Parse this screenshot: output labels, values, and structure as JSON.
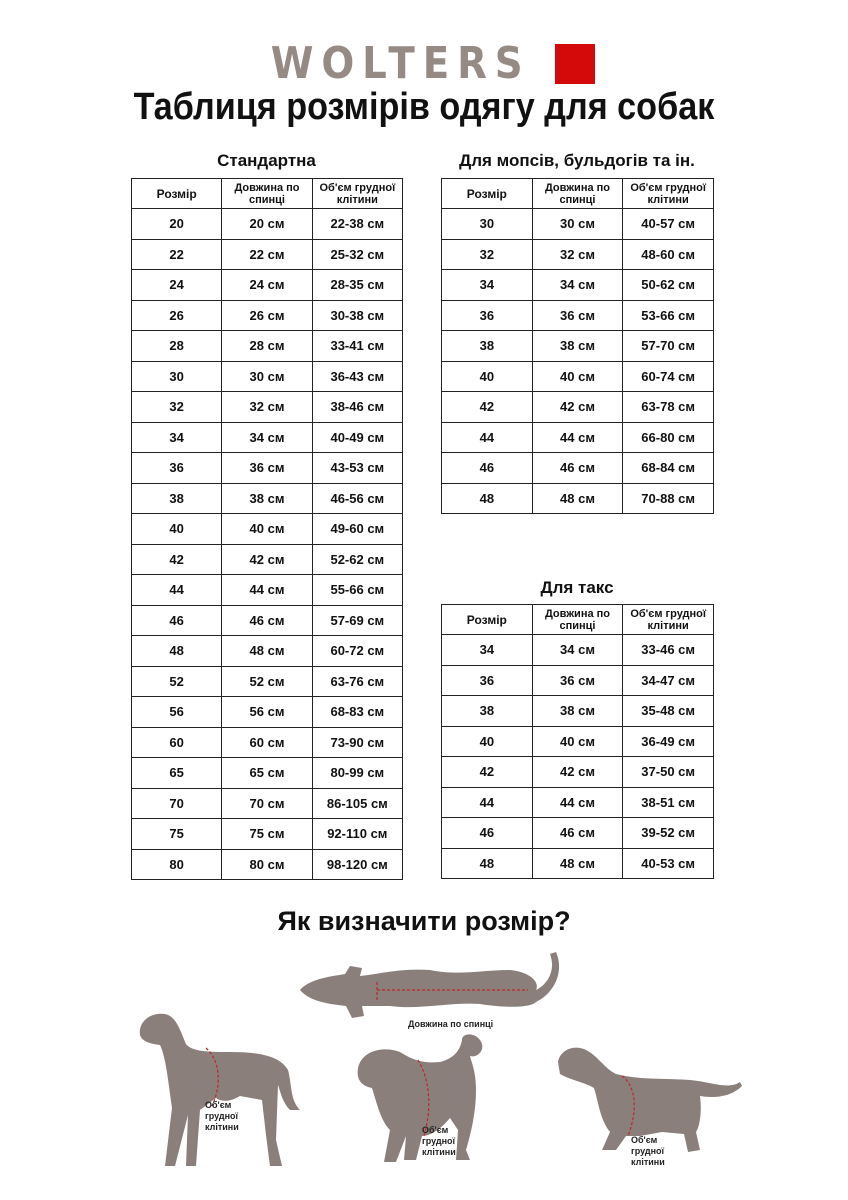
{
  "brand": {
    "name": "WOLTERS",
    "accent_color": "#d40a0a",
    "text_color": "#968a84"
  },
  "title": "Таблиця розмірів одягу для собак",
  "columns": [
    "Розмір",
    "Довжина по спинці",
    "Об'єм грудної клітини"
  ],
  "tables": [
    {
      "title": "Стандартна",
      "rows": [
        [
          "20",
          "20 см",
          "22-38 см"
        ],
        [
          "22",
          "22 см",
          "25-32 см"
        ],
        [
          "24",
          "24 см",
          "28-35 см"
        ],
        [
          "26",
          "26 см",
          "30-38 см"
        ],
        [
          "28",
          "28 см",
          "33-41 см"
        ],
        [
          "30",
          "30 см",
          "36-43 см"
        ],
        [
          "32",
          "32 см",
          "38-46 см"
        ],
        [
          "34",
          "34 см",
          "40-49 см"
        ],
        [
          "36",
          "36 см",
          "43-53 см"
        ],
        [
          "38",
          "38 см",
          "46-56 см"
        ],
        [
          "40",
          "40 см",
          "49-60 см"
        ],
        [
          "42",
          "42 см",
          "52-62 см"
        ],
        [
          "44",
          "44 см",
          "55-66 см"
        ],
        [
          "46",
          "46 см",
          "57-69 см"
        ],
        [
          "48",
          "48 см",
          "60-72 см"
        ],
        [
          "52",
          "52 см",
          "63-76 см"
        ],
        [
          "56",
          "56 см",
          "68-83 см"
        ],
        [
          "60",
          "60 см",
          "73-90 см"
        ],
        [
          "65",
          "65 см",
          "80-99 см"
        ],
        [
          "70",
          "70 см",
          "86-105 см"
        ],
        [
          "75",
          "75 см",
          "92-110 см"
        ],
        [
          "80",
          "80 см",
          "98-120 см"
        ]
      ]
    },
    {
      "title": "Для мопсів, бульдогів та ін.",
      "rows": [
        [
          "30",
          "30 см",
          "40-57 см"
        ],
        [
          "32",
          "32 см",
          "48-60 см"
        ],
        [
          "34",
          "34 см",
          "50-62 см"
        ],
        [
          "36",
          "36 см",
          "53-66 см"
        ],
        [
          "38",
          "38 см",
          "57-70 см"
        ],
        [
          "40",
          "40 см",
          "60-74 см"
        ],
        [
          "42",
          "42 см",
          "63-78 см"
        ],
        [
          "44",
          "44 см",
          "66-80 см"
        ],
        [
          "46",
          "46 см",
          "68-84 см"
        ],
        [
          "48",
          "48 см",
          "70-88 см"
        ]
      ]
    },
    {
      "title": "Для такс",
      "rows": [
        [
          "34",
          "34 см",
          "33-46 см"
        ],
        [
          "36",
          "36 см",
          "34-47 см"
        ],
        [
          "38",
          "38 см",
          "35-48 см"
        ],
        [
          "40",
          "40 см",
          "36-49 см"
        ],
        [
          "42",
          "42 см",
          "37-50 см"
        ],
        [
          "44",
          "44 см",
          "38-51 см"
        ],
        [
          "46",
          "46 см",
          "39-52 см"
        ],
        [
          "48",
          "48 см",
          "40-53 см"
        ]
      ]
    }
  ],
  "how_to": {
    "title": "Як визначити розмір?",
    "back_length_label": "Довжина по спинці",
    "chest_label": "Об'єм грудної клітини",
    "silhouette_color": "#8a7f7a",
    "measure_color": "#c0262b"
  }
}
